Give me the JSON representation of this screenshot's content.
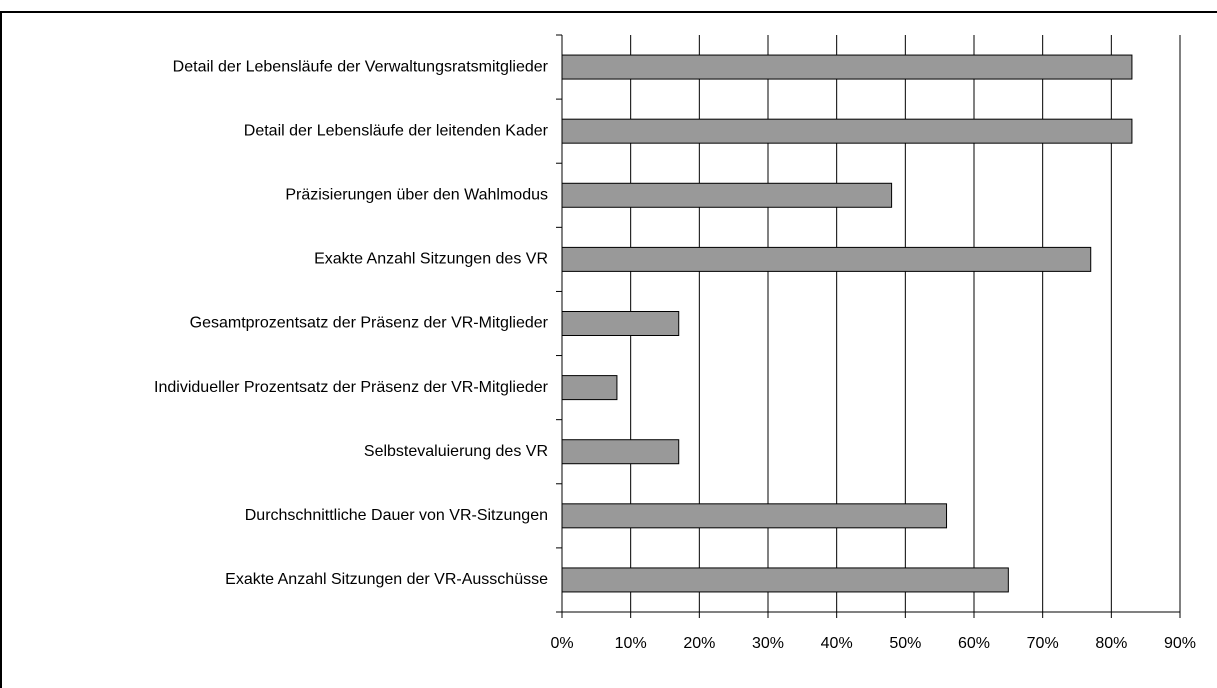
{
  "chart_data": {
    "type": "barh",
    "categories": [
      "Detail der Lebensläufe der Verwaltungsratsmitglieder",
      "Detail der Lebensläufe der leitenden Kader",
      "Präzisierungen über den Wahlmodus",
      "Exakte Anzahl Sitzungen des VR",
      "Gesamtprozentsatz der Präsenz der VR-Mitglieder",
      "Individueller Prozentsatz der Präsenz der VR-Mitglieder",
      "Selbstevaluierung des VR",
      "Durchschnittliche Dauer von VR-Sitzungen",
      "Exakte Anzahl Sitzungen der VR-Ausschüsse"
    ],
    "values": [
      83,
      83,
      48,
      77,
      17,
      8,
      17,
      56,
      65
    ],
    "color": "#999999",
    "xlim": [
      0,
      90
    ],
    "xticks": [
      {
        "value": 0,
        "label": "0%"
      },
      {
        "value": 10,
        "label": "10%"
      },
      {
        "value": 20,
        "label": "20%"
      },
      {
        "value": 30,
        "label": "30%"
      },
      {
        "value": 40,
        "label": "40%"
      },
      {
        "value": 50,
        "label": "50%"
      },
      {
        "value": 60,
        "label": "60%"
      },
      {
        "value": 70,
        "label": "70%"
      },
      {
        "value": 80,
        "label": "80%"
      },
      {
        "value": 90,
        "label": "90%"
      }
    ],
    "grid": true
  }
}
